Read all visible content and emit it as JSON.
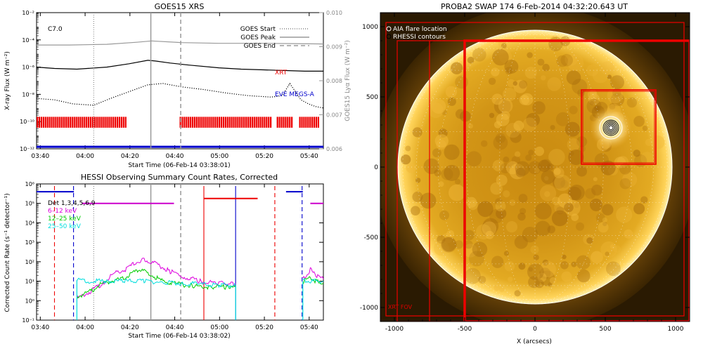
{
  "chart_data": [
    {
      "type": "line",
      "title": "GOES15 XRS",
      "xlabel": "Start Time (06-Feb-14 03:38:01)",
      "ylabel": "X-ray Flux (W m⁻²)",
      "y2label": "GOES15 Lyα Flux (W m⁻²)",
      "x_ticks": [
        "03:40",
        "04:00",
        "04:20",
        "04:40",
        "05:00",
        "05:20",
        "05:40"
      ],
      "x_tick_min": [
        220,
        1420,
        2620,
        3820,
        5020,
        6220,
        7420
      ],
      "xlim_min": [
        120,
        7800
      ],
      "y_scale": "log",
      "ylim_exp": [
        -12,
        -2
      ],
      "y_ticks_exp": [
        -12,
        -10,
        -8,
        -6,
        -4,
        -2
      ],
      "y2lim": [
        0.006,
        0.01
      ],
      "y2_ticks": [
        "0.006",
        "0.007",
        "0.008",
        "0.009",
        "0.010"
      ],
      "y2_tick_values": [
        0.006,
        0.007,
        0.008,
        0.009,
        0.01
      ],
      "flare_class": "C7.0",
      "legend": [
        {
          "name": "GOES Start",
          "style": "dotted"
        },
        {
          "name": "GOES Peak",
          "style": "solid"
        },
        {
          "name": "GOES End",
          "style": "dashed"
        }
      ],
      "markers_min": {
        "start": 1650,
        "peak": 3180,
        "end": 3980
      },
      "labels": {
        "xrt": "XRT",
        "eve": "EVE MEGS-A"
      },
      "series": [
        {
          "role": "lya",
          "color": "#999999",
          "axis": "right",
          "x_min": [
            120,
            1000,
            2000,
            2800,
            3200,
            4000,
            5000,
            6000,
            7000,
            7800
          ],
          "y": [
            0.00905,
            0.00905,
            0.00907,
            0.00913,
            0.00917,
            0.00912,
            0.0091,
            0.0091,
            0.00909,
            0.00908
          ]
        },
        {
          "role": "long",
          "color": "#000000",
          "axis": "left",
          "x_min": [
            120,
            600,
            1200,
            2000,
            2600,
            3100,
            3300,
            3700,
            4200,
            5000,
            5600,
            6200,
            6800,
            7300,
            7800
          ],
          "y_exp": [
            -6.0,
            -6.1,
            -6.15,
            -6.0,
            -5.75,
            -5.5,
            -5.55,
            -5.7,
            -5.85,
            -6.05,
            -6.15,
            -6.2,
            -6.25,
            -6.3,
            -6.3
          ]
        },
        {
          "role": "short",
          "color": "#000000",
          "axis": "left",
          "dotted": true,
          "x_min": [
            120,
            600,
            1100,
            1650,
            2100,
            2600,
            3100,
            3500,
            4000,
            4600,
            5200,
            5800,
            6400,
            6700,
            6900,
            7050,
            7200,
            7400,
            7600,
            7800
          ],
          "y_exp": [
            -8.3,
            -8.4,
            -8.7,
            -8.8,
            -8.3,
            -7.8,
            -7.3,
            -7.2,
            -7.45,
            -7.65,
            -7.9,
            -8.1,
            -8.2,
            -8.1,
            -7.2,
            -7.8,
            -8.4,
            -8.7,
            -8.9,
            -9.0
          ]
        },
        {
          "role": "megs",
          "color": "#0000cc",
          "axis": "left",
          "x_min": [
            120,
            7800
          ],
          "y_exp": [
            -11.85,
            -11.85
          ]
        }
      ],
      "xrt_bars": {
        "color": "#ee0000",
        "y_exp": [
          -10.45,
          -9.65
        ],
        "coverage_min": [
          [
            120,
            2520
          ],
          [
            3950,
            6400
          ],
          [
            6550,
            6950
          ],
          [
            7150,
            7650
          ]
        ]
      }
    },
    {
      "type": "line",
      "title": "HESSI Observing Summary Count Rates, Corrected",
      "xlabel": "Start Time (06-Feb-14 03:38:02)",
      "ylabel": "Corrected Count Rate (s⁻¹ detector⁻¹)",
      "x_ticks": [
        "03:40",
        "04:00",
        "04:20",
        "04:40",
        "05:00",
        "05:20",
        "05:40"
      ],
      "x_tick_min": [
        220,
        1420,
        2620,
        3820,
        5020,
        6220,
        7420
      ],
      "xlim_min": [
        120,
        7800
      ],
      "y_scale": "log",
      "ylim_exp": [
        -1,
        6
      ],
      "y_ticks_exp": [
        -1,
        0,
        1,
        2,
        3,
        4,
        5,
        6
      ],
      "legend": [
        {
          "name": "Det 1,3,4,5,6,9",
          "color": "#000000"
        },
        {
          "name": "6–12 keV",
          "color": "#dd00dd"
        },
        {
          "name": "12–25 keV",
          "color": "#00cc00"
        },
        {
          "name": "25–50 keV",
          "color": "#00dddd"
        }
      ],
      "markers_min": {
        "start": 1650,
        "peak": 3180,
        "end": 3980
      },
      "state_bars": [
        {
          "color": "#0000cc",
          "y_exp": 5.6,
          "segments": [
            [
              120,
              1120
            ],
            [
              6800,
              7250
            ]
          ]
        },
        {
          "color": "#0000cc",
          "y_exp": 5.5,
          "segments": [
            [
              1110,
              1120
            ]
          ]
        },
        {
          "color": "#cc00cc",
          "y_exp": 5.0,
          "segments": [
            [
              1330,
              3800
            ],
            [
              7450,
              7800
            ]
          ]
        },
        {
          "color": "#ee0000",
          "y_exp": 5.25,
          "segments": [
            [
              4600,
              6040
            ]
          ]
        }
      ],
      "vlines": [
        {
          "color": "#ee0000",
          "style": "dashed",
          "x_min": 600
        },
        {
          "color": "#0000cc",
          "style": "dashed",
          "x_min": 1110
        },
        {
          "color": "#ee0000",
          "style": "solid",
          "x_min": 4600
        },
        {
          "color": "#0000cc",
          "style": "solid",
          "x_min": 5450
        },
        {
          "color": "#ee0000",
          "style": "dashed",
          "x_min": 6500
        },
        {
          "color": "#0000cc",
          "style": "dashed",
          "x_min": 7230
        }
      ],
      "series": [
        {
          "name": "6-12 keV",
          "color": "#dd00dd",
          "x_min": [
            1200,
            1500,
            1900,
            2200,
            2500,
            2800,
            3000,
            3300,
            3700,
            4100,
            4500,
            5000,
            5400,
            5450
          ],
          "y_exp": [
            0.1,
            0.4,
            0.9,
            1.4,
            1.6,
            2.0,
            2.1,
            1.9,
            1.5,
            1.2,
            1.0,
            0.9,
            0.85,
            0.9
          ]
        },
        {
          "name": "12-25 keV",
          "color": "#00cc00",
          "x_min": [
            1200,
            1500,
            1800,
            2100,
            2400,
            2700,
            2900,
            3200,
            3500,
            3900,
            4300,
            4800,
            5200,
            5450
          ],
          "y_exp": [
            0.2,
            0.4,
            0.8,
            1.0,
            1.1,
            1.4,
            1.6,
            1.3,
            1.0,
            0.85,
            0.75,
            0.7,
            0.7,
            0.8
          ]
        },
        {
          "name": "25-50 keV",
          "color": "#00dddd",
          "x_min": [
            1200,
            1600,
            2000,
            2500,
            3000,
            3500,
            4000,
            4500,
            5000,
            5450
          ],
          "y_exp": [
            1.05,
            1.0,
            1.0,
            1.0,
            1.0,
            0.95,
            0.9,
            0.85,
            0.8,
            0.8
          ]
        },
        {
          "name": "6-12 keV",
          "color": "#dd00dd",
          "x_min": [
            7250,
            7450,
            7600,
            7800
          ],
          "y_exp": [
            1.1,
            1.6,
            1.3,
            1.1
          ]
        },
        {
          "name": "12-25 keV",
          "color": "#00cc00",
          "x_min": [
            7250,
            7450,
            7600,
            7800
          ],
          "y_exp": [
            0.95,
            1.2,
            1.0,
            0.9
          ]
        },
        {
          "name": "25-50 keV",
          "color": "#00dddd",
          "x_min": [
            7250,
            7500,
            7800
          ],
          "y_exp": [
            1.0,
            1.0,
            1.0
          ]
        }
      ]
    },
    {
      "type": "image",
      "title": "PROBA2 SWAP 174   6-Feb-2014 04:32:20.643 UT",
      "xlabel": "X (arcsecs)",
      "ylabel": "",
      "xlim": [
        -1100,
        1100
      ],
      "ylim": [
        -1100,
        1100
      ],
      "x_ticks": [
        -1000,
        -500,
        0,
        500,
        1000
      ],
      "y_ticks": [
        -1000,
        -500,
        0,
        500,
        1000
      ],
      "legend": [
        "AIA flare location",
        "RHESSI contours"
      ],
      "fov_label": "XRT FOV",
      "disk_radius_arcsec": 975,
      "flare_location": [
        540,
        280
      ],
      "rectangles": [
        {
          "x": [
            -1060,
            1060
          ],
          "y": [
            -1060,
            1030
          ],
          "w": 1.2
        },
        {
          "x": [
            -980,
            1100
          ],
          "y": [
            -1100,
            900
          ],
          "w": 1.2
        },
        {
          "x": [
            -750,
            1100
          ],
          "y": [
            -1100,
            900
          ],
          "w": 1.2
        },
        {
          "x": [
            -500,
            1100
          ],
          "y": [
            -1100,
            900
          ],
          "w": 3.5
        },
        {
          "x": [
            330,
            860
          ],
          "y": [
            20,
            550
          ],
          "w": 1.6
        },
        {
          "x": [
            340,
            850
          ],
          "y": [
            30,
            540
          ],
          "w": 1.0
        }
      ]
    }
  ]
}
